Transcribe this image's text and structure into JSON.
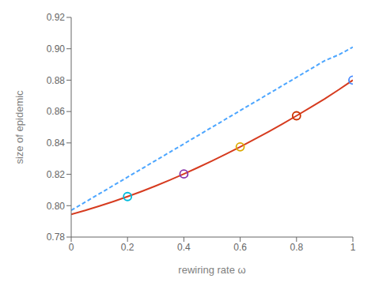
{
  "chart_data": {
    "type": "line",
    "title": "",
    "xlabel": "rewiring rate ω",
    "ylabel": "size of epidemic",
    "xlim": [
      0,
      1.0
    ],
    "ylim": [
      0.78,
      0.92
    ],
    "xticks": [
      0,
      0.2,
      0.4,
      0.6,
      0.8,
      1
    ],
    "yticks": [
      0.78,
      {
        "value": 0.8,
        "label": "0.80"
      },
      0.82,
      0.84,
      0.86,
      0.88,
      {
        "value": 0.9,
        "label": "0.90"
      },
      0.92
    ],
    "grid": false,
    "x": [
      0.0,
      0.05,
      0.1,
      0.15,
      0.2,
      0.25,
      0.3,
      0.35,
      0.4,
      0.45,
      0.5,
      0.55,
      0.6,
      0.65,
      0.7,
      0.75,
      0.8,
      0.85,
      0.9,
      0.95,
      1.0
    ],
    "series": [
      {
        "color": "#d63b1f",
        "line_style": "solid",
        "values": [
          0.7945,
          0.797,
          0.7998,
          0.8027,
          0.8058,
          0.8091,
          0.8126,
          0.8163,
          0.8202,
          0.8243,
          0.8285,
          0.8329,
          0.8375,
          0.8422,
          0.8471,
          0.8521,
          0.8573,
          0.8626,
          0.8681,
          0.8739,
          0.88
        ]
      },
      {
        "color": "#4da6ff",
        "line_style": "dashed",
        "values": [
          0.797,
          0.8023,
          0.8076,
          0.8129,
          0.8182,
          0.8235,
          0.8288,
          0.8341,
          0.8394,
          0.8447,
          0.85,
          0.8553,
          0.8606,
          0.8659,
          0.8712,
          0.8765,
          0.8818,
          0.8871,
          0.8924,
          0.8962,
          0.901
        ]
      },
      {
        "type": "scatter",
        "marker": "circle",
        "x": [
          0.2,
          0.4,
          0.6,
          0.8,
          1.0
        ],
        "values": [
          0.8058,
          0.8202,
          0.8375,
          0.8573,
          0.88
        ],
        "colors": [
          "#00bbdd",
          "#8833aa",
          "#ddaa00",
          "#cc3300",
          "#4488ff"
        ]
      }
    ]
  }
}
